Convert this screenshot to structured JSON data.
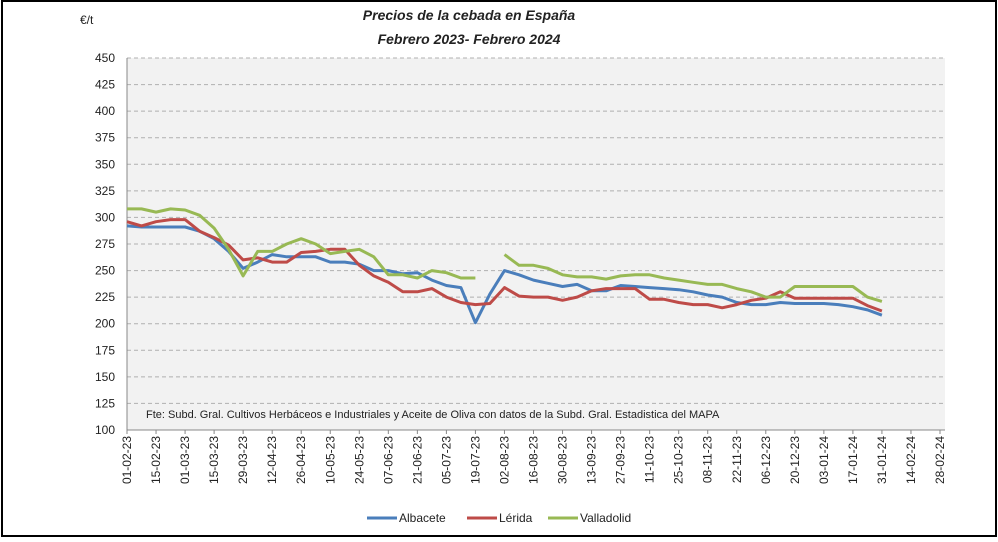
{
  "chart_data": {
    "type": "line",
    "title": "Precios de la cebada en España",
    "subtitle": "Febrero 2023- Febrero 2024",
    "ylabel": "€/t",
    "annotation": "Fte: Subd. Gral. Cultivos Herbáceos e Industriales y Aceite de Oliva con datos de la Subd. Gral. Estadistica del MAPA",
    "categories": [
      "01-02-23",
      null,
      "15-02-23",
      null,
      "01-03-23",
      null,
      "15-03-23",
      null,
      "29-03-23",
      null,
      "12-04-23",
      null,
      "26-04-23",
      null,
      "10-05-23",
      null,
      "24-05-23",
      null,
      "07-06-23",
      null,
      "21-06-23",
      null,
      "05-07-23",
      null,
      "19-07-23",
      null,
      "02-08-23",
      null,
      "16-08-23",
      null,
      "30-08-23",
      null,
      "13-09-23",
      null,
      "27-09-23",
      null,
      "11-10-23",
      null,
      "25-10-23",
      null,
      "08-11-23",
      null,
      "22-11-23",
      null,
      "06-12-23",
      null,
      "20-12-23",
      null,
      "03-01-24",
      null,
      "17-01-24",
      null,
      "31-01-24",
      null,
      "14-02-24",
      null,
      "28-02-24"
    ],
    "series": [
      {
        "name": "Albacete",
        "color": "#4a7ebb",
        "values": [
          292,
          291,
          291,
          291,
          291,
          287,
          280,
          268,
          252,
          258,
          265,
          263,
          263,
          263,
          258,
          258,
          256,
          250,
          250,
          247,
          248,
          241,
          236,
          234,
          201,
          228,
          250,
          246,
          241,
          238,
          235,
          237,
          231,
          231,
          236,
          235,
          234,
          233,
          232,
          230,
          227,
          225,
          220,
          218,
          218,
          220,
          219,
          219,
          219,
          218,
          216,
          213,
          208,
          null,
          null,
          null,
          null
        ]
      },
      {
        "name": "Lérida",
        "color": "#be4b48",
        "values": [
          296,
          292,
          296,
          298,
          298,
          287,
          281,
          274,
          260,
          262,
          258,
          258,
          267,
          268,
          270,
          270,
          255,
          245,
          239,
          230,
          230,
          233,
          225,
          220,
          218,
          219,
          234,
          226,
          225,
          225,
          222,
          225,
          231,
          233,
          233,
          233,
          223,
          223,
          220,
          218,
          218,
          215,
          218,
          222,
          224,
          230,
          224,
          224,
          224,
          224,
          224,
          217,
          212,
          null,
          null,
          null,
          null
        ]
      },
      {
        "name": "Valladolid",
        "color": "#98b954",
        "values": [
          308,
          308,
          305,
          308,
          307,
          302,
          290,
          270,
          245,
          268,
          268,
          275,
          280,
          275,
          266,
          268,
          270,
          263,
          246,
          246,
          243,
          250,
          248,
          243,
          243,
          null,
          265,
          255,
          255,
          252,
          246,
          244,
          244,
          242,
          245,
          246,
          246,
          243,
          241,
          239,
          237,
          237,
          233,
          230,
          225,
          225,
          235,
          235,
          235,
          235,
          235,
          225,
          221,
          null,
          null,
          null,
          null
        ]
      }
    ],
    "ylim": [
      100,
      450
    ],
    "yticks": [
      100,
      125,
      150,
      175,
      200,
      225,
      250,
      275,
      300,
      325,
      350,
      375,
      400,
      425,
      450
    ],
    "grid": true,
    "legend": "bottom"
  }
}
